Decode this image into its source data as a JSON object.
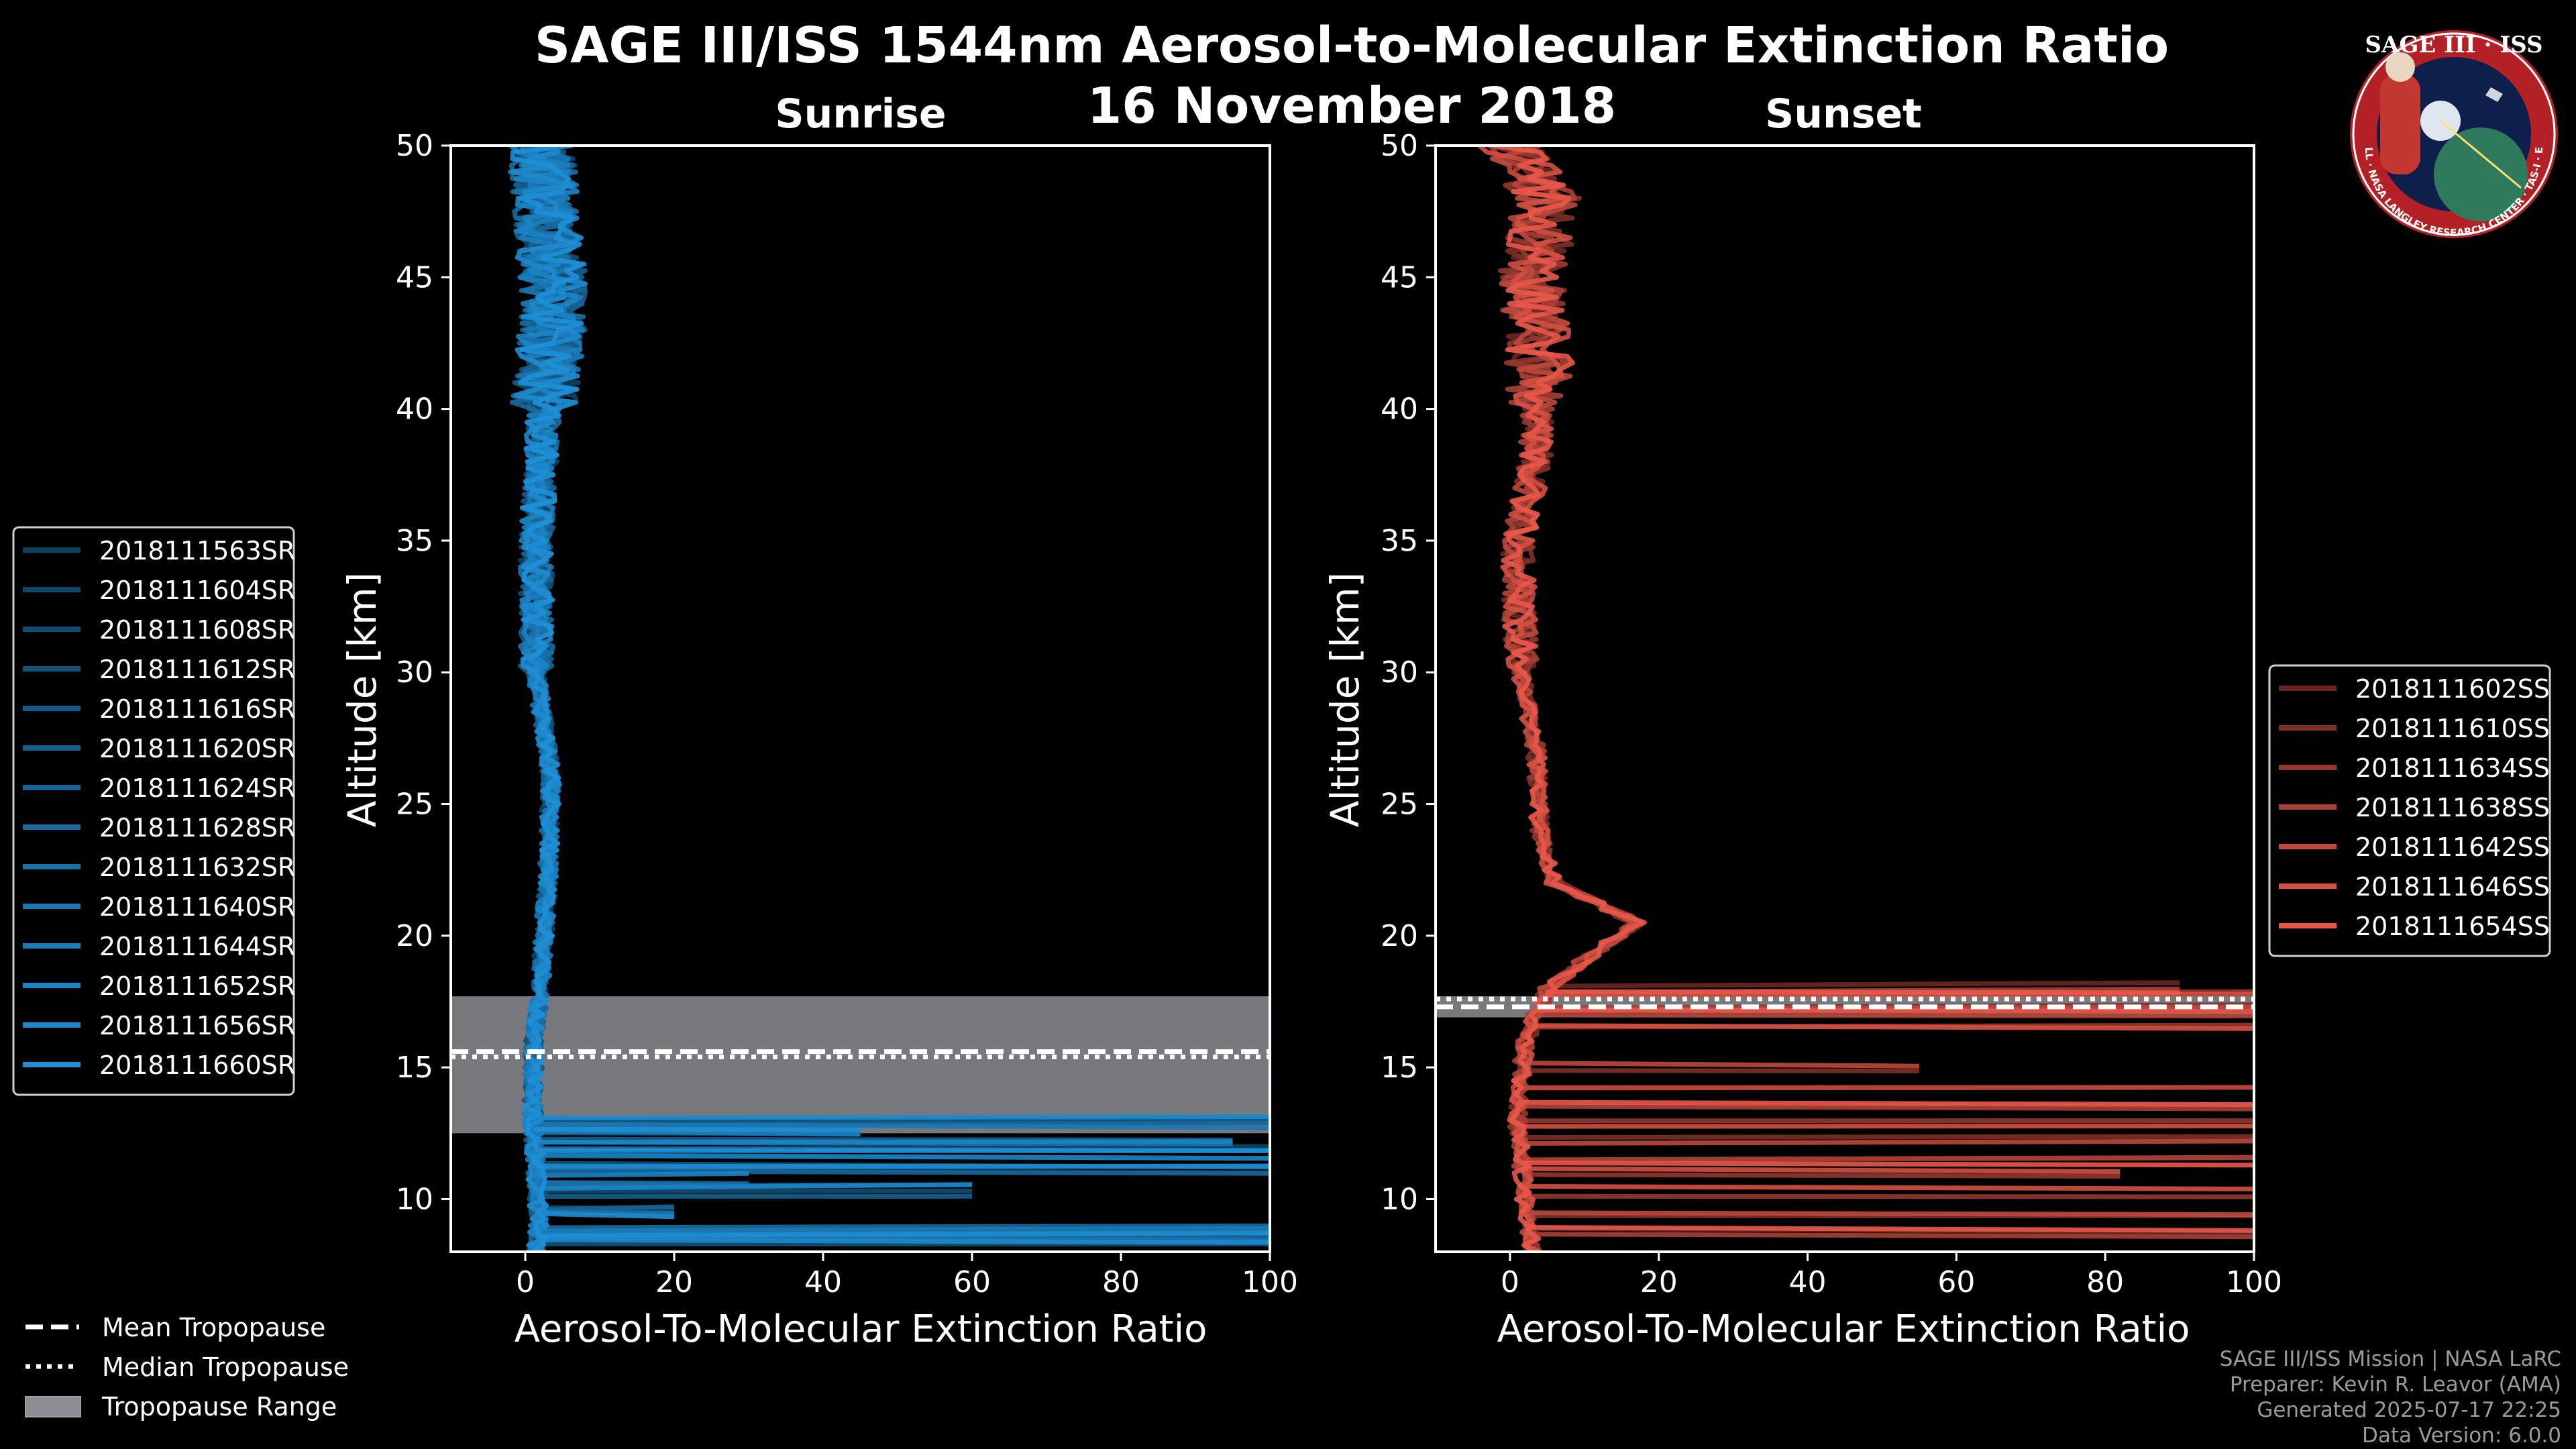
{
  "title_line1": "SAGE III/ISS 1544nm Aerosol-to-Molecular Extinction Ratio",
  "title_line2": "16 November 2018",
  "logo": {
    "text_top": "SAGE III · ISS",
    "text_ring": "BALL · NASA LANGLEY RESEARCH CENTER · TAS-I · ESA"
  },
  "footer": {
    "line1": "SAGE III/ISS Mission | NASA LaRC",
    "line2": "Preparer: Kevin R. Leavor (AMA)",
    "line3": "Generated 2025-07-17 22:25",
    "line4": "Data Version: 6.0.0"
  },
  "tropopause_legend": [
    "Mean Tropopause",
    "Median Tropopause",
    "Tropopause Range"
  ],
  "colors": {
    "sunrise": "#1f8fd6",
    "sunset": "#e8584a",
    "tropo_range": "#8c8e93",
    "background": "#000000"
  },
  "chart_data": [
    {
      "type": "line",
      "title": "Sunrise",
      "xlabel": "Aerosol-To-Molecular Extinction Ratio",
      "ylabel": "Altitude [km]",
      "xlim": [
        -10,
        100
      ],
      "ylim": [
        8,
        50
      ],
      "xticks": [
        0,
        20,
        40,
        60,
        80,
        100
      ],
      "yticks": [
        10,
        15,
        20,
        25,
        30,
        35,
        40,
        45,
        50
      ],
      "legend_position": "outside-left",
      "tropopause": {
        "mean": 15.6,
        "median": 15.4,
        "range": [
          12.5,
          17.7
        ]
      },
      "series": [
        {
          "name": "2018111563SR"
        },
        {
          "name": "2018111604SR"
        },
        {
          "name": "2018111608SR"
        },
        {
          "name": "2018111612SR"
        },
        {
          "name": "2018111616SR"
        },
        {
          "name": "2018111620SR"
        },
        {
          "name": "2018111624SR"
        },
        {
          "name": "2018111628SR"
        },
        {
          "name": "2018111632SR"
        },
        {
          "name": "2018111640SR"
        },
        {
          "name": "2018111644SR"
        },
        {
          "name": "2018111652SR"
        },
        {
          "name": "2018111656SR"
        },
        {
          "name": "2018111660SR"
        }
      ],
      "profile_shape": {
        "upper": [
          [
            50,
            2.0
          ],
          [
            47,
            3.0
          ],
          [
            44,
            4.0
          ],
          [
            40,
            2.5
          ],
          [
            35,
            1.5
          ],
          [
            30,
            1.5
          ],
          [
            26,
            3.5
          ],
          [
            22,
            3.0
          ],
          [
            20,
            2.5
          ],
          [
            18,
            2.0
          ],
          [
            16,
            1.2
          ],
          [
            13,
            1.0
          ],
          [
            11,
            1.5
          ],
          [
            9,
            1.8
          ],
          [
            8.3,
            1.5
          ]
        ],
        "spikes": [
          [
            12.9,
            100
          ],
          [
            12.3,
            95
          ],
          [
            11.8,
            100
          ],
          [
            11.2,
            100
          ],
          [
            10.3,
            60
          ],
          [
            8.8,
            100
          ],
          [
            8.5,
            100
          ],
          [
            10.8,
            30
          ],
          [
            12.5,
            45
          ],
          [
            9.5,
            20
          ]
        ]
      }
    },
    {
      "type": "line",
      "title": "Sunset",
      "xlabel": "Aerosol-To-Molecular Extinction Ratio",
      "ylabel": "Altitude [km]",
      "xlim": [
        -10,
        100
      ],
      "ylim": [
        8,
        50
      ],
      "xticks": [
        0,
        20,
        40,
        60,
        80,
        100
      ],
      "yticks": [
        10,
        15,
        20,
        25,
        30,
        35,
        40,
        45,
        50
      ],
      "legend_position": "outside-right",
      "tropopause": {
        "mean": 17.3,
        "median": 17.6,
        "range": [
          16.9,
          17.7
        ]
      },
      "series": [
        {
          "name": "2018111602SS"
        },
        {
          "name": "2018111610SS"
        },
        {
          "name": "2018111634SS"
        },
        {
          "name": "2018111638SS"
        },
        {
          "name": "2018111642SS"
        },
        {
          "name": "2018111646SS"
        },
        {
          "name": "2018111654SS"
        }
      ],
      "profile_shape": {
        "upper": [
          [
            50,
            0.0
          ],
          [
            48,
            5.0
          ],
          [
            45,
            3.0
          ],
          [
            42,
            4.0
          ],
          [
            38,
            3.5
          ],
          [
            35,
            1.0
          ],
          [
            30,
            1.5
          ],
          [
            27,
            3.5
          ],
          [
            24,
            4.0
          ],
          [
            22,
            6.0
          ],
          [
            20.5,
            17.0
          ],
          [
            19.5,
            12.0
          ],
          [
            18,
            5.0
          ],
          [
            16,
            2.0
          ],
          [
            13,
            1.0
          ],
          [
            10,
            2.0
          ],
          [
            8.2,
            3.0
          ]
        ],
        "spikes": [
          [
            18.0,
            90
          ],
          [
            17.8,
            100
          ],
          [
            17.3,
            100
          ],
          [
            17.0,
            100
          ],
          [
            16.6,
            100
          ],
          [
            14.3,
            100
          ],
          [
            13.5,
            100
          ],
          [
            12.8,
            100
          ],
          [
            12.3,
            100
          ],
          [
            11.5,
            100
          ],
          [
            10.3,
            100
          ],
          [
            9.4,
            100
          ],
          [
            8.8,
            100
          ],
          [
            11.0,
            82
          ],
          [
            15.0,
            55
          ]
        ]
      }
    }
  ]
}
